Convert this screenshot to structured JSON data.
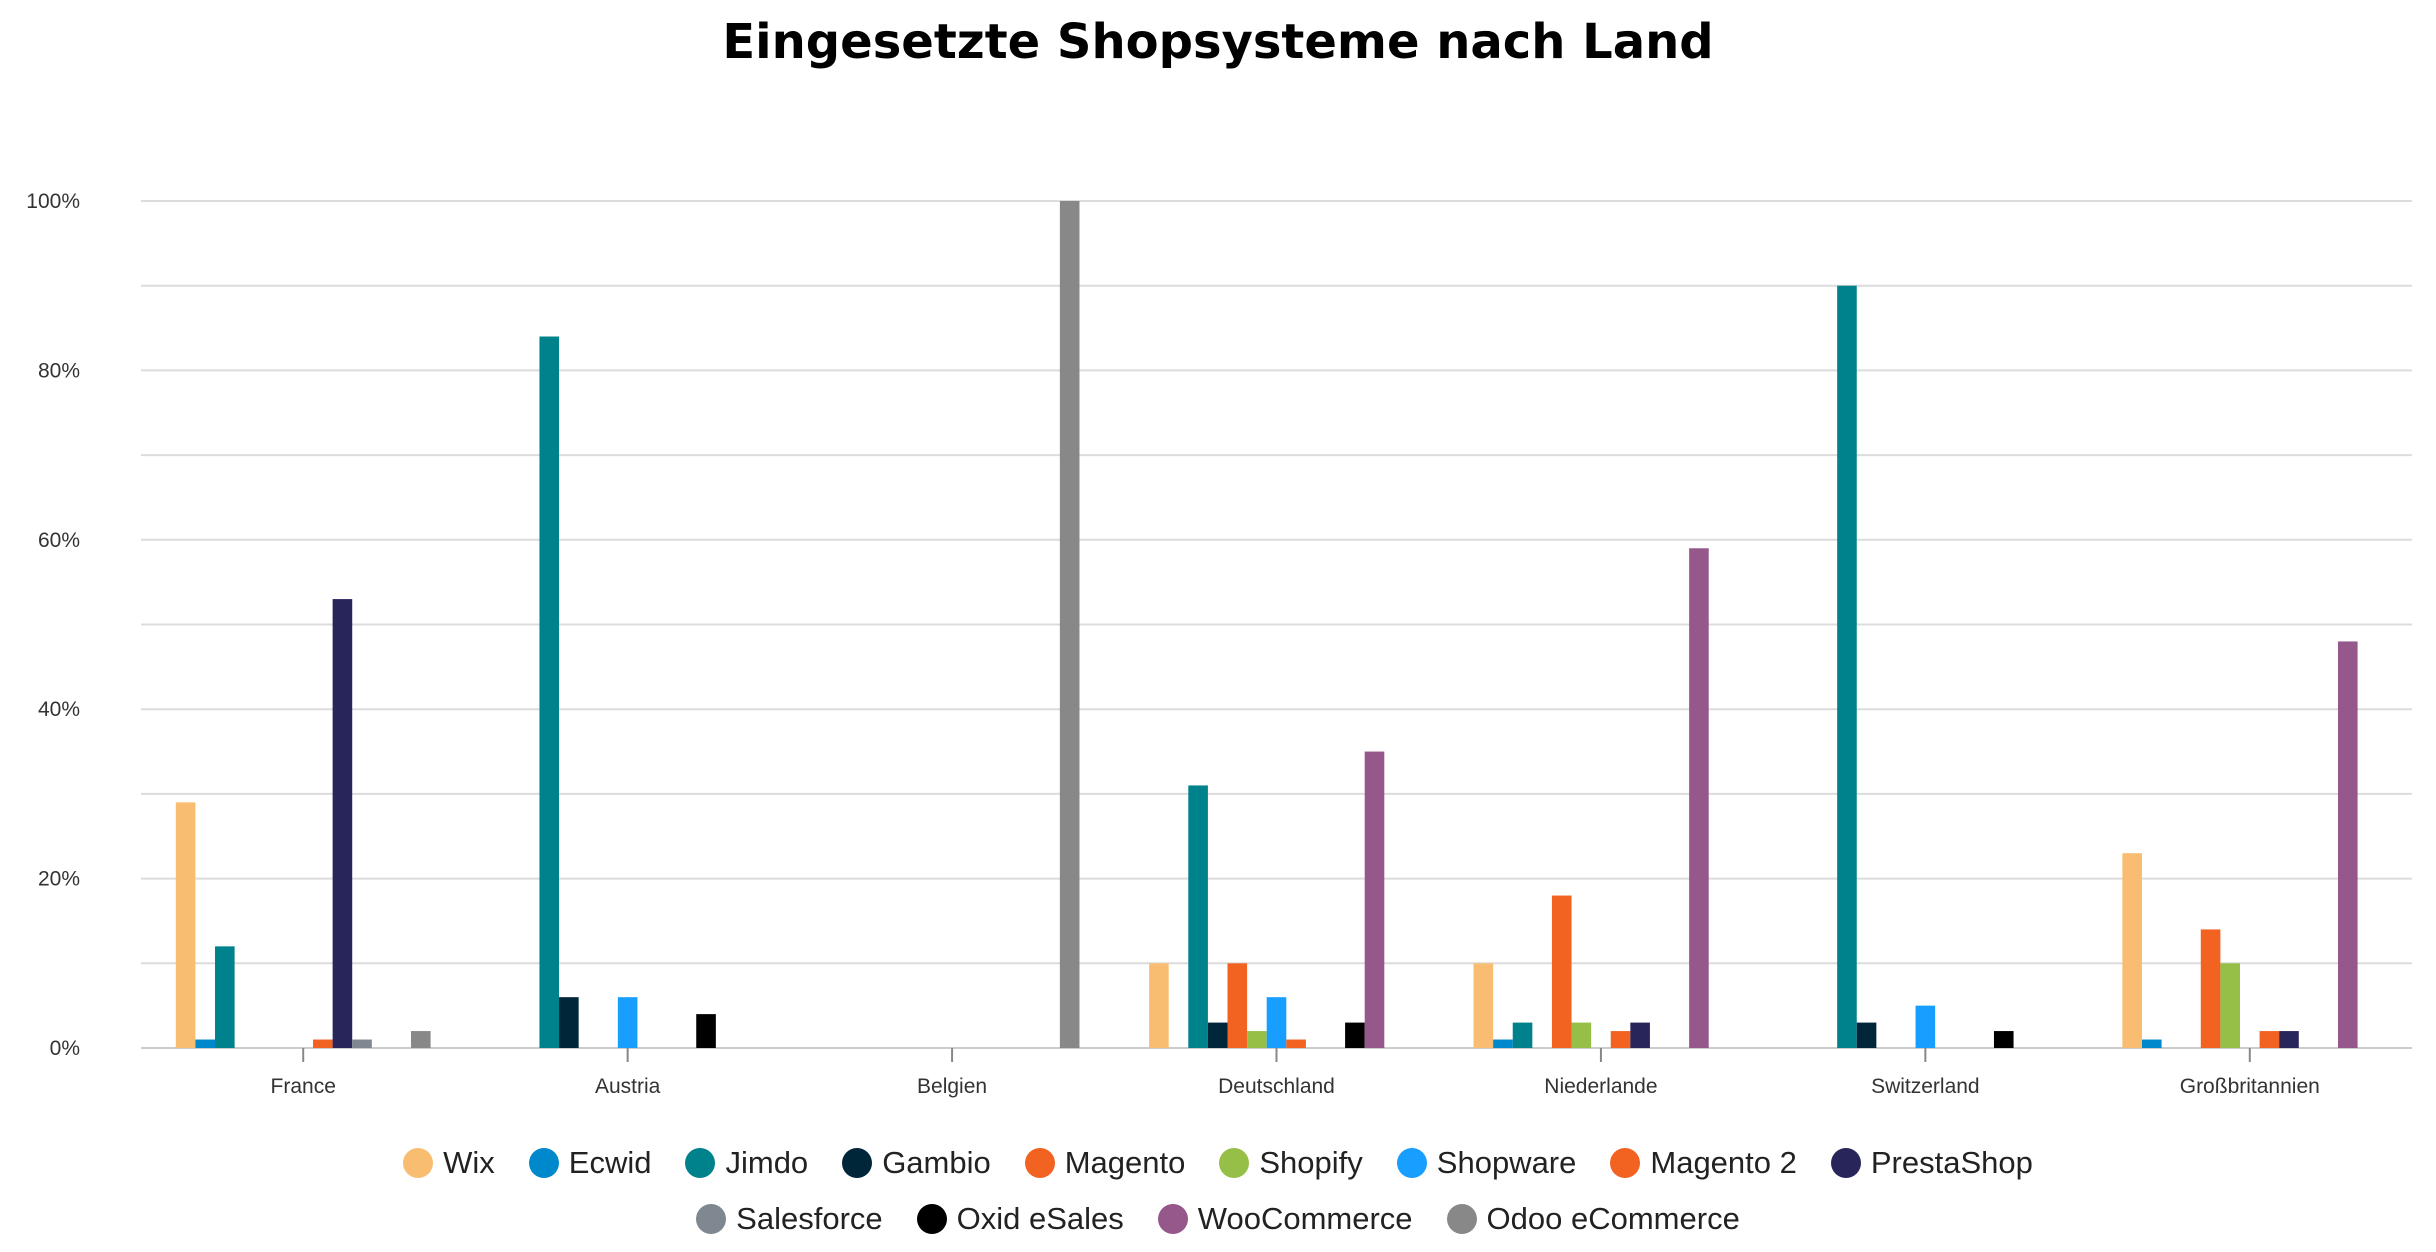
{
  "chart_data": {
    "type": "bar",
    "title": "Eingesetzte Shopsysteme nach Land",
    "xlabel": "",
    "ylabel": "",
    "ylim": [
      0,
      100
    ],
    "yticks": [
      "0%",
      "20%",
      "40%",
      "60%",
      "80%",
      "100%"
    ],
    "grid": true,
    "legend_position": "bottom",
    "categories": [
      "France",
      "Austria",
      "Belgien",
      "Deutschland",
      "Niederlande",
      "Switzerland",
      "Großbritannien"
    ],
    "series": [
      {
        "name": "Wix",
        "color": "#f9bd72",
        "values": [
          29,
          0,
          0,
          10,
          10,
          0,
          23
        ]
      },
      {
        "name": "Ecwid",
        "color": "#0088cc",
        "values": [
          1,
          0,
          0,
          0,
          1,
          0,
          1
        ]
      },
      {
        "name": "Jimdo",
        "color": "#00828c",
        "values": [
          12,
          84,
          0,
          31,
          3,
          90,
          0
        ]
      },
      {
        "name": "Gambio",
        "color": "#00263a",
        "values": [
          0,
          6,
          0,
          3,
          0,
          3,
          0
        ]
      },
      {
        "name": "Magento",
        "color": "#f26322",
        "values": [
          0,
          0,
          0,
          10,
          18,
          0,
          14
        ]
      },
      {
        "name": "Shopify",
        "color": "#95bf47",
        "values": [
          0,
          0,
          0,
          2,
          3,
          0,
          10
        ]
      },
      {
        "name": "Shopware",
        "color": "#189eff",
        "values": [
          0,
          6,
          0,
          6,
          0,
          5,
          0
        ]
      },
      {
        "name": "Magento 2",
        "color": "#f26322",
        "values": [
          1,
          0,
          0,
          1,
          2,
          0,
          2
        ]
      },
      {
        "name": "PrestaShop",
        "color": "#28255b",
        "values": [
          53,
          0,
          0,
          0,
          3,
          0,
          2
        ]
      },
      {
        "name": "Salesforce",
        "color": "#7f8890",
        "values": [
          1,
          0,
          0,
          0,
          0,
          0,
          0
        ]
      },
      {
        "name": "Oxid eSales",
        "color": "#000000",
        "values": [
          0,
          4,
          0,
          3,
          0,
          2,
          0
        ]
      },
      {
        "name": "WooCommerce",
        "color": "#96588a",
        "values": [
          0,
          0,
          0,
          35,
          59,
          0,
          48
        ]
      },
      {
        "name": "Odoo eCommerce",
        "color": "#888888",
        "values": [
          2,
          0,
          100,
          0,
          0,
          0,
          0
        ]
      }
    ]
  }
}
